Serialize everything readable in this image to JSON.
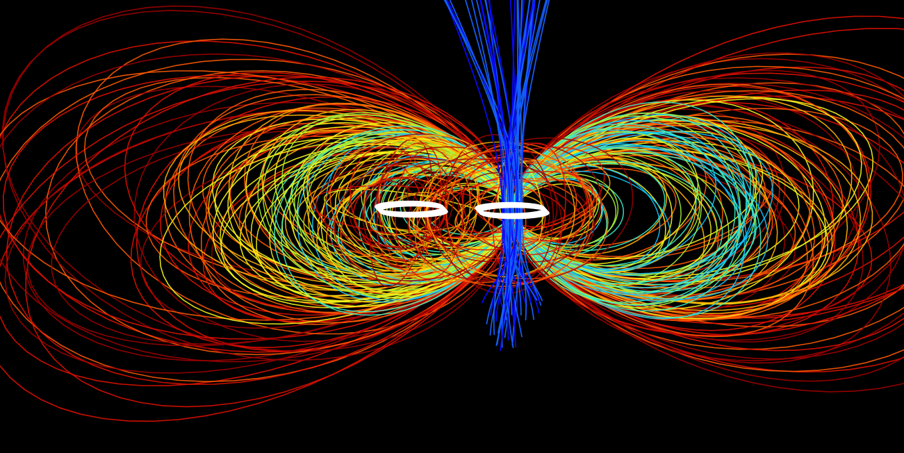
{
  "scene": {
    "background_color": "#000000",
    "subject": "magnetic-field-lines-around-two-current-loops",
    "colormap": "jet",
    "colormap_stops": [
      "#0a0aff",
      "#1560ff",
      "#12c8ff",
      "#3cf0c8",
      "#a6f53a",
      "#f5f51a",
      "#ffb000",
      "#ff5a00",
      "#e01000",
      "#a00000"
    ],
    "coil_color": "#ffffff",
    "coil_count": 2
  }
}
